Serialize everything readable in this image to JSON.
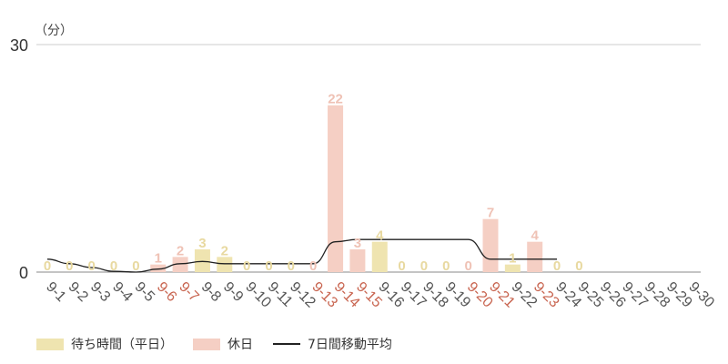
{
  "chart_data": {
    "type": "bar",
    "y_unit_label": "（分）",
    "ylim": [
      0,
      30
    ],
    "yticks": [
      "0",
      "30"
    ],
    "categories": [
      "9-1",
      "9-2",
      "9-3",
      "9-4",
      "9-5",
      "9-6",
      "9-7",
      "9-8",
      "9-9",
      "9-10",
      "9-11",
      "9-12",
      "9-13",
      "9-14",
      "9-15",
      "9-16",
      "9-17",
      "9-18",
      "9-19",
      "9-20",
      "9-21",
      "9-22",
      "9-23",
      "9-24",
      "9-25",
      "9-26",
      "9-27",
      "9-28",
      "9-29",
      "9-30"
    ],
    "holidays": [
      false,
      false,
      false,
      false,
      false,
      true,
      true,
      false,
      false,
      false,
      false,
      false,
      true,
      true,
      true,
      false,
      false,
      false,
      false,
      true,
      true,
      false,
      true,
      false,
      false,
      false,
      false,
      false,
      false,
      false
    ],
    "values": [
      0,
      0,
      0,
      0,
      0,
      1,
      2,
      3,
      2,
      0,
      0,
      0,
      0,
      22,
      3,
      4,
      0,
      0,
      0,
      0,
      7,
      1,
      4,
      0,
      0,
      null,
      null,
      null,
      null,
      null
    ],
    "moving_average": [
      1.7,
      1.1,
      0.6,
      0.1,
      0.0,
      0.4,
      1.1,
      1.4,
      1.1,
      1.1,
      1.1,
      1.1,
      1.1,
      4.0,
      4.3,
      4.3,
      4.3,
      4.3,
      4.3,
      4.3,
      1.7,
      1.7,
      1.7,
      1.7,
      null,
      null,
      null,
      null,
      null,
      null
    ],
    "series": [
      {
        "name": "待ち時間（平日）",
        "color": "#efe4b0"
      },
      {
        "name": "休日",
        "color": "#f5cfc4"
      },
      {
        "name": "7日間移動平均",
        "color": "#222222"
      }
    ],
    "colors": {
      "weekday_label": "#e8d9a0",
      "holiday_label": "#efc2b5",
      "tick_normal": "#555555",
      "tick_holiday": "#c8644f",
      "grid": "#cccccc",
      "axis": "#888888"
    },
    "grid": true,
    "legend_position": "bottom-left"
  }
}
